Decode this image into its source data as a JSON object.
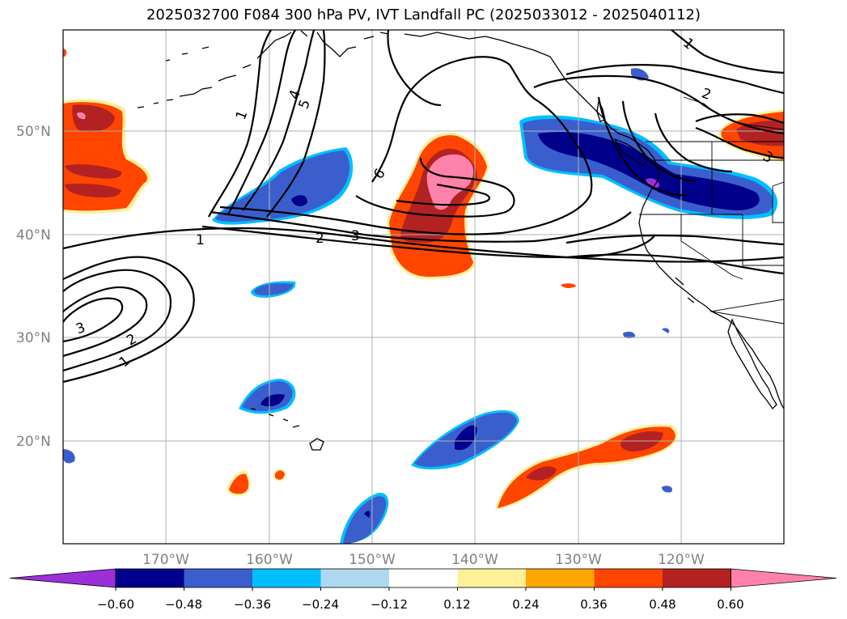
{
  "title": "2025032700 F084 300 hPa PV, IVT Landfall PC (2025033012 - 2025040112)",
  "lat_labels": [
    "50°N",
    "40°N",
    "30°N",
    "20°N"
  ],
  "lon_labels": [
    "170°W",
    "160°W",
    "150°W",
    "140°W",
    "130°W",
    "120°W"
  ],
  "contour_labels": [
    "1",
    "4",
    "5",
    "6",
    "1",
    "2",
    "3",
    "3",
    "2",
    "1",
    "1",
    "2",
    "3"
  ],
  "colorbar": {
    "ticks": [
      "−0.60",
      "−0.48",
      "−0.36",
      "−0.24",
      "−0.12",
      "0.12",
      "0.24",
      "0.36",
      "0.48",
      "0.60"
    ],
    "colors": [
      "#9b30d9",
      "#00008b",
      "#3a5fcd",
      "#00bfff",
      "#add8f0",
      "#ffffff",
      "#fff098",
      "#ffa500",
      "#ff4500",
      "#b22222",
      "#ff82ab",
      "#ff82ab"
    ]
  },
  "chart_data": {
    "type": "heatmap",
    "title": "2025032700 F084 300 hPa PV, IVT Landfall PC (2025033012 - 2025040112)",
    "lon_ticks": [
      "170°W",
      "160°W",
      "150°W",
      "140°W",
      "130°W",
      "120°W"
    ],
    "lat_ticks": [
      "50°N",
      "40°N",
      "30°N",
      "20°N"
    ],
    "contour_levels": [
      1,
      2,
      3,
      4,
      5,
      6
    ],
    "colorbar_levels": [
      -0.6,
      -0.48,
      -0.36,
      -0.24,
      -0.12,
      0.12,
      0.24,
      0.36,
      0.48,
      0.6
    ],
    "colorbar_extend": "both"
  }
}
